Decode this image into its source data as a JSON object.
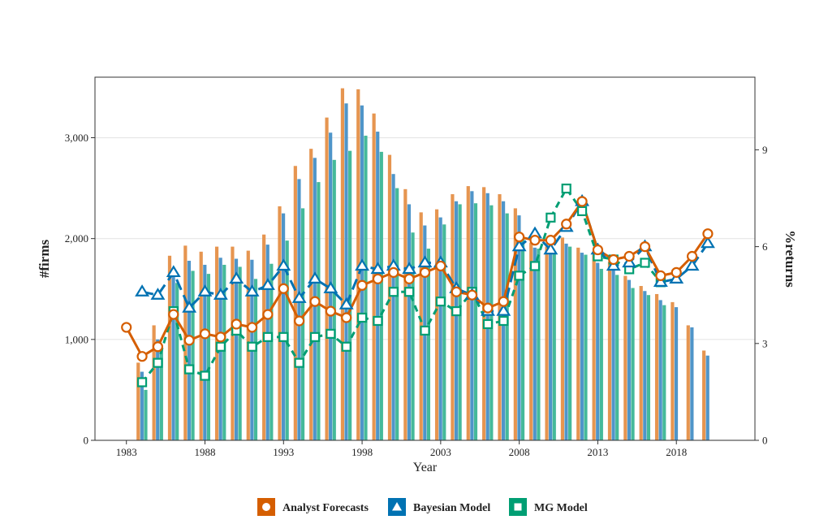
{
  "chart_data": {
    "type": "bar+line",
    "title": "",
    "xlabel": "Year",
    "ylabel_left": "#firms",
    "ylabel_right": "%returns",
    "ylim_left": [
      0,
      3600
    ],
    "ylim_right": [
      0,
      11.25
    ],
    "xlim": [
      1981,
      2023
    ],
    "x_ticks": [
      "1983",
      "1988",
      "1993",
      "1998",
      "2003",
      "2008",
      "2013",
      "2018"
    ],
    "y_left_ticks": [
      "0",
      "1,000",
      "2,000",
      "3,000"
    ],
    "y_left_tick_values": [
      0,
      1000,
      2000,
      3000
    ],
    "y_right_ticks": [
      "0",
      "3",
      "6",
      "9"
    ],
    "y_right_tick_values": [
      0,
      3,
      6,
      9
    ],
    "grid": true,
    "legend_position": "bottom",
    "colors": {
      "analyst": "#D55E00",
      "bayesian": "#0072B2",
      "mg": "#009E73",
      "analyst_bar": "#E69550",
      "bayesian_bar": "#4F95C9",
      "mg_bar": "#45B99A"
    },
    "years": [
      1984,
      1985,
      1986,
      1987,
      1988,
      1989,
      1990,
      1991,
      1992,
      1993,
      1994,
      1995,
      1996,
      1997,
      1998,
      1999,
      2000,
      2001,
      2002,
      2003,
      2004,
      2005,
      2006,
      2007,
      2008,
      2009,
      2010,
      2011,
      2012,
      2013,
      2014,
      2015,
      2016,
      2017,
      2018,
      2019,
      2020
    ],
    "bar_series": [
      {
        "name": "Analyst Forecasts",
        "values": [
          770,
          1140,
          1830,
          1930,
          1870,
          1920,
          1920,
          1880,
          2040,
          2320,
          2720,
          2890,
          3200,
          3490,
          3480,
          3240,
          2830,
          2490,
          2260,
          2290,
          2440,
          2520,
          2510,
          2440,
          2300,
          1960,
          1920,
          2010,
          1910,
          1840,
          1770,
          1630,
          1530,
          1450,
          1370,
          1140,
          890
        ]
      },
      {
        "name": "Bayesian Model",
        "values": [
          680,
          1000,
          1660,
          1780,
          1740,
          1810,
          1800,
          1790,
          1940,
          2250,
          2590,
          2800,
          3050,
          3340,
          3320,
          3060,
          2640,
          2340,
          2130,
          2210,
          2370,
          2470,
          2450,
          2370,
          2230,
          1910,
          1860,
          1950,
          1860,
          1760,
          1700,
          1590,
          1480,
          1390,
          1320,
          1120,
          840
        ]
      },
      {
        "name": "MG Model",
        "values": [
          500,
          920,
          1560,
          1680,
          1650,
          1740,
          1720,
          1600,
          1750,
          1980,
          2300,
          2560,
          2780,
          2870,
          3020,
          2860,
          2500,
          2060,
          1900,
          2140,
          2340,
          2350,
          2330,
          2250,
          2000,
          1900,
          1850,
          1920,
          1840,
          1700,
          1640,
          1510,
          1440,
          1340,
          null,
          null,
          null
        ]
      }
    ],
    "line_series": [
      {
        "name": "Analyst Forecasts",
        "marker": "circle",
        "x": [
          1983,
          1984,
          1985,
          1986,
          1987,
          1988,
          1989,
          1990,
          1991,
          1992,
          1993,
          1994,
          1995,
          1996,
          1997,
          1998,
          1999,
          2000,
          2001,
          2002,
          2003,
          2004,
          2005,
          2006,
          2007,
          2008,
          2009,
          2010,
          2011,
          2012,
          2013,
          2014,
          2015,
          2016,
          2017,
          2018,
          2019,
          2020
        ],
        "values": [
          3.5,
          2.6,
          2.9,
          3.9,
          3.1,
          3.3,
          3.2,
          3.6,
          3.5,
          3.9,
          4.7,
          3.7,
          4.3,
          4.0,
          3.8,
          4.8,
          5.0,
          5.2,
          5.0,
          5.2,
          5.4,
          4.6,
          4.5,
          4.1,
          4.3,
          6.3,
          6.2,
          6.2,
          6.7,
          7.4,
          5.9,
          5.6,
          5.7,
          6.0,
          5.1,
          5.2,
          5.7,
          6.4
        ]
      },
      {
        "name": "Bayesian Model",
        "marker": "triangle",
        "x": [
          1984,
          1985,
          1986,
          1987,
          1988,
          1989,
          1990,
          1991,
          1992,
          1993,
          1994,
          1995,
          1996,
          1997,
          1998,
          1999,
          2000,
          2001,
          2002,
          2003,
          2004,
          2005,
          2006,
          2007,
          2008,
          2009,
          2010,
          2011,
          2012,
          2013,
          2014,
          2015,
          2016,
          2017,
          2018,
          2019,
          2020
        ],
        "values": [
          4.6,
          4.5,
          5.2,
          4.1,
          4.6,
          4.5,
          5.0,
          4.6,
          4.8,
          5.4,
          4.4,
          5.0,
          4.7,
          4.2,
          5.4,
          5.3,
          5.4,
          5.3,
          5.5,
          5.5,
          4.7,
          4.5,
          4.0,
          4.0,
          6.0,
          6.4,
          5.9,
          6.6,
          7.4,
          5.9,
          5.4,
          5.5,
          6.0,
          4.9,
          5.0,
          5.4,
          6.1
        ]
      },
      {
        "name": "MG Model",
        "marker": "square",
        "x": [
          1984,
          1985,
          1986,
          1987,
          1988,
          1989,
          1990,
          1991,
          1992,
          1993,
          1994,
          1995,
          1996,
          1997,
          1998,
          1999,
          2000,
          2001,
          2002,
          2003,
          2004,
          2005,
          2006,
          2007,
          2008,
          2009,
          2010,
          2011,
          2012,
          2013,
          2014,
          2015,
          2016,
          2017
        ],
        "values": [
          1.8,
          2.4,
          4.0,
          2.2,
          2.0,
          2.9,
          3.4,
          2.9,
          3.2,
          3.2,
          2.4,
          3.2,
          3.3,
          2.9,
          3.8,
          3.7,
          4.6,
          4.6,
          3.4,
          4.3,
          4.0,
          4.6,
          3.6,
          3.7,
          5.1,
          5.4,
          6.9,
          7.8,
          7.1,
          5.7,
          5.6,
          5.3,
          5.5,
          4.9
        ]
      }
    ],
    "legend": [
      {
        "name": "Analyst Forecasts",
        "marker": "circle",
        "color": "#D55E00"
      },
      {
        "name": "Bayesian Model",
        "marker": "triangle",
        "color": "#0072B2"
      },
      {
        "name": "MG Model",
        "marker": "square",
        "color": "#009E73"
      }
    ]
  }
}
